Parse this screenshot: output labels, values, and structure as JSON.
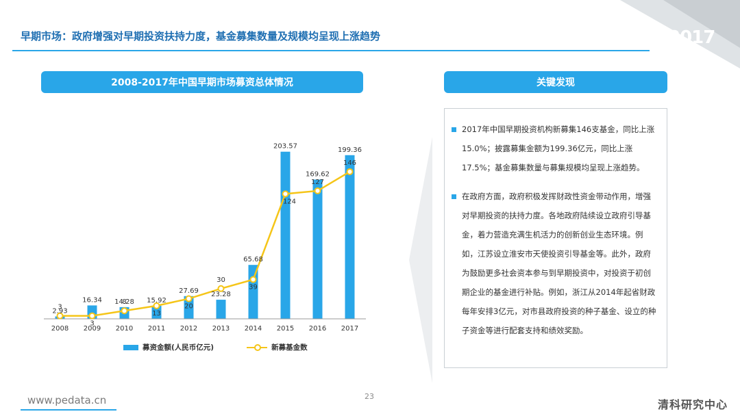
{
  "header": {
    "title": "早期市场：政府增强对早期投资扶持力度，基金募集数量及规模均呈现上涨趋势",
    "year_badge": "2017"
  },
  "chart_panel": {
    "title": "2008-2017年中国早期市场募资总体情况"
  },
  "findings": {
    "title": "关键发现",
    "items": [
      "2017年中国早期投资机构新募集146支基金，同比上涨15.0%；披露募集金额为199.36亿元，同比上涨17.5%；基金募集数量与募集规模均呈现上涨趋势。",
      "在政府方面，政府积极发挥财政性资金带动作用，增强对早期投资的扶持力度。各地政府陆续设立政府引导基金，着力营造充满生机活力的创新创业生态环境。例如，江苏设立淮安市天使投资引导基金等。此外，政府为鼓励更多社会资本参与到早期投资中，对投资于初创期企业的基金进行补贴。例如，浙江从2014年起省财政每年安排3亿元，对市县政府投资的种子基金、设立的种子资金等进行配套支持和绩效奖励。"
    ]
  },
  "chart_data": {
    "type": "bar",
    "categories": [
      "2008",
      "2009",
      "2010",
      "2011",
      "2012",
      "2013",
      "2014",
      "2015",
      "2016",
      "2017"
    ],
    "series": [
      {
        "name": "募资金额(人民币亿元)",
        "type": "bar",
        "color": "#29a6e8",
        "values": [
          2.93,
          16.34,
          14.28,
          15.92,
          27.69,
          23.28,
          65.68,
          203.57,
          169.62,
          199.36
        ],
        "labels": [
          "2.93",
          "16.34",
          "14.28",
          "15.92",
          "27.69",
          "23.28",
          "65.68",
          "203.57",
          "169.62",
          "199.36"
        ]
      },
      {
        "name": "新募基金数",
        "type": "line",
        "color": "#f5c518",
        "values": [
          3,
          3,
          8,
          13,
          20,
          30,
          39,
          124,
          127,
          146
        ],
        "labels": [
          "3",
          "3",
          "8",
          "13",
          "20",
          "30",
          "39",
          "124",
          "127",
          "146"
        ]
      }
    ],
    "grid": false,
    "legend_position": "bottom"
  },
  "footer": {
    "url": "www.pedata.cn",
    "page_number": "23",
    "brand": "清科研究中心"
  }
}
